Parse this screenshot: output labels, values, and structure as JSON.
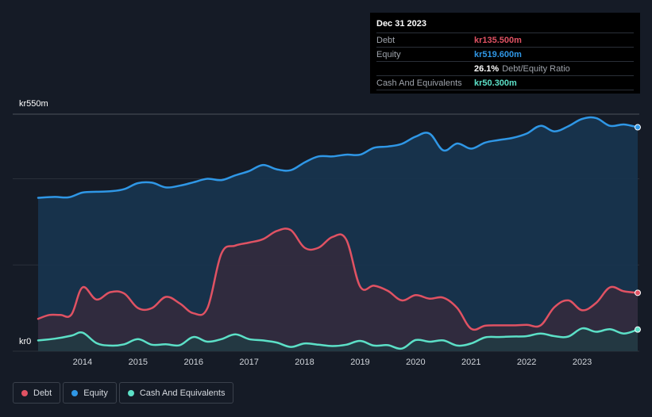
{
  "tooltip": {
    "date": "Dec 31 2023",
    "debt_label": "Debt",
    "debt_value": "kr135.500m",
    "equity_label": "Equity",
    "equity_value": "kr519.600m",
    "ratio_value": "26.1%",
    "ratio_label": "Debt/Equity Ratio",
    "cash_label": "Cash And Equivalents",
    "cash_value": "kr50.300m"
  },
  "legend": {
    "debt": "Debt",
    "equity": "Equity",
    "cash": "Cash And Equivalents"
  },
  "colors": {
    "background": "#151b26",
    "debt": "#e05263",
    "equity": "#2f97e6",
    "cash": "#5ce0c7",
    "equity_fill": "#173550",
    "debt_fill": "#3a2a3a",
    "cash_fill": "#1f3e44"
  },
  "chart_data": {
    "type": "area",
    "y_top_label": "kr550m",
    "y_bottom_label": "kr0",
    "ylim": [
      0,
      550
    ],
    "xlim": [
      2013.2,
      2024.0
    ],
    "x_ticks": [
      "2014",
      "2015",
      "2016",
      "2017",
      "2018",
      "2019",
      "2020",
      "2021",
      "2022",
      "2023"
    ],
    "grid": true,
    "legend_position": "bottom-left",
    "series": [
      {
        "name": "Equity",
        "points": [
          [
            2013.2,
            356
          ],
          [
            2013.5,
            358
          ],
          [
            2013.75,
            357
          ],
          [
            2014.0,
            368
          ],
          [
            2014.25,
            370
          ],
          [
            2014.5,
            371
          ],
          [
            2014.75,
            376
          ],
          [
            2015.0,
            390
          ],
          [
            2015.25,
            391
          ],
          [
            2015.5,
            380
          ],
          [
            2015.75,
            384
          ],
          [
            2016.0,
            392
          ],
          [
            2016.25,
            400
          ],
          [
            2016.5,
            397
          ],
          [
            2016.75,
            408
          ],
          [
            2017.0,
            418
          ],
          [
            2017.25,
            432
          ],
          [
            2017.5,
            422
          ],
          [
            2017.75,
            420
          ],
          [
            2018.0,
            438
          ],
          [
            2018.25,
            452
          ],
          [
            2018.5,
            452
          ],
          [
            2018.75,
            456
          ],
          [
            2019.0,
            456
          ],
          [
            2019.25,
            472
          ],
          [
            2019.5,
            475
          ],
          [
            2019.75,
            481
          ],
          [
            2020.0,
            498
          ],
          [
            2020.25,
            505
          ],
          [
            2020.5,
            466
          ],
          [
            2020.75,
            482
          ],
          [
            2021.0,
            470
          ],
          [
            2021.25,
            484
          ],
          [
            2021.5,
            490
          ],
          [
            2021.75,
            495
          ],
          [
            2022.0,
            505
          ],
          [
            2022.25,
            523
          ],
          [
            2022.5,
            510
          ],
          [
            2022.75,
            522
          ],
          [
            2023.0,
            539
          ],
          [
            2023.25,
            541
          ],
          [
            2023.5,
            523
          ],
          [
            2023.75,
            526
          ],
          [
            2024.0,
            519.6
          ]
        ]
      },
      {
        "name": "Debt",
        "points": [
          [
            2013.2,
            75
          ],
          [
            2013.4,
            84
          ],
          [
            2013.6,
            84
          ],
          [
            2013.8,
            85
          ],
          [
            2014.0,
            148
          ],
          [
            2014.25,
            120
          ],
          [
            2014.5,
            137
          ],
          [
            2014.75,
            134
          ],
          [
            2015.0,
            100
          ],
          [
            2015.25,
            100
          ],
          [
            2015.5,
            126
          ],
          [
            2015.75,
            111
          ],
          [
            2016.0,
            88
          ],
          [
            2016.25,
            100
          ],
          [
            2016.5,
            226
          ],
          [
            2016.75,
            245
          ],
          [
            2017.0,
            252
          ],
          [
            2017.25,
            260
          ],
          [
            2017.5,
            279
          ],
          [
            2017.75,
            281
          ],
          [
            2018.0,
            240
          ],
          [
            2018.25,
            240
          ],
          [
            2018.5,
            265
          ],
          [
            2018.75,
            259
          ],
          [
            2019.0,
            150
          ],
          [
            2019.25,
            152
          ],
          [
            2019.5,
            140
          ],
          [
            2019.75,
            118
          ],
          [
            2020.0,
            130
          ],
          [
            2020.25,
            122
          ],
          [
            2020.5,
            124
          ],
          [
            2020.75,
            100
          ],
          [
            2021.0,
            52
          ],
          [
            2021.25,
            59
          ],
          [
            2021.5,
            60
          ],
          [
            2021.75,
            60
          ],
          [
            2022.0,
            61
          ],
          [
            2022.25,
            60
          ],
          [
            2022.5,
            102
          ],
          [
            2022.75,
            118
          ],
          [
            2023.0,
            95
          ],
          [
            2023.25,
            112
          ],
          [
            2023.5,
            148
          ],
          [
            2023.75,
            139
          ],
          [
            2024.0,
            135.5
          ]
        ]
      },
      {
        "name": "Cash And Equivalents",
        "points": [
          [
            2013.2,
            25
          ],
          [
            2013.5,
            29
          ],
          [
            2013.8,
            36
          ],
          [
            2014.0,
            43
          ],
          [
            2014.25,
            19
          ],
          [
            2014.5,
            13
          ],
          [
            2014.75,
            16
          ],
          [
            2015.0,
            28
          ],
          [
            2015.25,
            15
          ],
          [
            2015.5,
            16
          ],
          [
            2015.75,
            14
          ],
          [
            2016.0,
            33
          ],
          [
            2016.25,
            22
          ],
          [
            2016.5,
            28
          ],
          [
            2016.75,
            39
          ],
          [
            2017.0,
            28
          ],
          [
            2017.25,
            25
          ],
          [
            2017.5,
            20
          ],
          [
            2017.75,
            10
          ],
          [
            2018.0,
            18
          ],
          [
            2018.25,
            15
          ],
          [
            2018.5,
            12
          ],
          [
            2018.75,
            15
          ],
          [
            2019.0,
            24
          ],
          [
            2019.25,
            13
          ],
          [
            2019.5,
            14
          ],
          [
            2019.75,
            6
          ],
          [
            2020.0,
            26
          ],
          [
            2020.25,
            22
          ],
          [
            2020.5,
            25
          ],
          [
            2020.75,
            13
          ],
          [
            2021.0,
            18
          ],
          [
            2021.25,
            32
          ],
          [
            2021.5,
            33
          ],
          [
            2021.75,
            34
          ],
          [
            2022.0,
            35
          ],
          [
            2022.25,
            41
          ],
          [
            2022.5,
            35
          ],
          [
            2022.75,
            34
          ],
          [
            2023.0,
            53
          ],
          [
            2023.25,
            45
          ],
          [
            2023.5,
            51
          ],
          [
            2023.75,
            41
          ],
          [
            2024.0,
            50.3
          ]
        ]
      }
    ]
  }
}
